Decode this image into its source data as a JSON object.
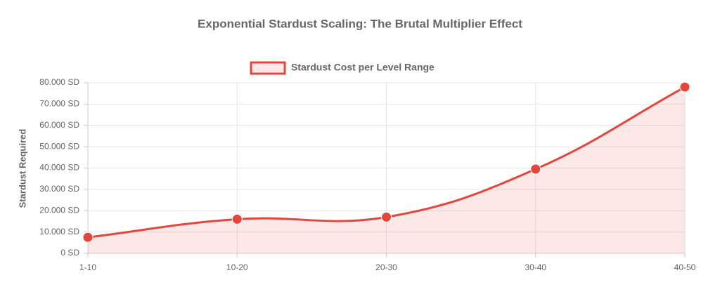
{
  "chart_data": {
    "type": "line",
    "title": "Exponential Stardust Scaling: The Brutal Multiplier Effect",
    "y_label": "Stardust Required",
    "categories": [
      "1-10",
      "10-20",
      "20-30",
      "30-40",
      "40-50"
    ],
    "series": [
      {
        "name": "Stardust Cost per Level Range",
        "color": "#e5463b",
        "values": [
          7500,
          16000,
          17000,
          39500,
          78000
        ]
      }
    ],
    "fill": true,
    "ylim": [
      0,
      80000
    ],
    "yticks": [
      {
        "value": 0,
        "label": "0 SD"
      },
      {
        "value": 10000,
        "label": "10.000 SD"
      },
      {
        "value": 20000,
        "label": "20.000 SD"
      },
      {
        "value": 30000,
        "label": "30.000 SD"
      },
      {
        "value": 40000,
        "label": "40.000 SD"
      },
      {
        "value": 50000,
        "label": "50.000 SD"
      },
      {
        "value": 60000,
        "label": "60.000 SD"
      },
      {
        "value": 70000,
        "label": "70.000 SD"
      },
      {
        "value": 80000,
        "label": "80.000 SD"
      }
    ],
    "grid": true
  }
}
